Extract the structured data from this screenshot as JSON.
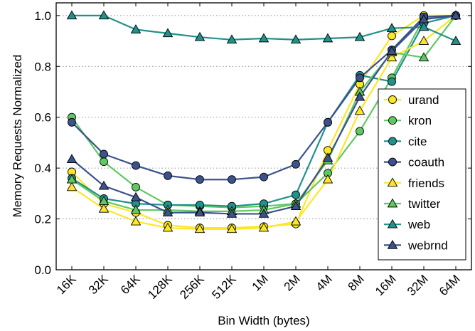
{
  "chart_data": {
    "type": "line",
    "title": "",
    "xlabel": "Bin Width (bytes)",
    "ylabel": "Memory Requests Normalized",
    "categories": [
      "16K",
      "32K",
      "64K",
      "128K",
      "256K",
      "512K",
      "1M",
      "2M",
      "4M",
      "8M",
      "16M",
      "32M",
      "64M"
    ],
    "ylim": [
      0.0,
      1.05
    ],
    "yticks": [
      "0.0",
      "0.2",
      "0.4",
      "0.6",
      "0.8",
      "1.0"
    ],
    "grid": "horizontal dotted",
    "legend_position": "right",
    "series": [
      {
        "name": "urand",
        "color": "#fde725",
        "marker": "circle",
        "values": [
          0.385,
          0.26,
          0.225,
          0.175,
          0.165,
          0.165,
          0.17,
          0.18,
          0.47,
          0.73,
          0.92,
          1.0,
          1.0
        ]
      },
      {
        "name": "kron",
        "color": "#5ec962",
        "marker": "circle",
        "values": [
          0.6,
          0.425,
          0.325,
          0.255,
          0.25,
          0.245,
          0.25,
          0.26,
          0.38,
          0.545,
          0.755,
          0.99,
          1.0
        ]
      },
      {
        "name": "cite",
        "color": "#21918c",
        "marker": "circle",
        "values": [
          0.36,
          0.28,
          0.26,
          0.255,
          0.255,
          0.25,
          0.26,
          0.295,
          0.58,
          0.765,
          0.74,
          0.97,
          1.0
        ]
      },
      {
        "name": "coauth",
        "color": "#3b528b",
        "marker": "circle",
        "values": [
          0.58,
          0.455,
          0.41,
          0.37,
          0.355,
          0.355,
          0.365,
          0.415,
          0.58,
          0.755,
          0.865,
          0.995,
          1.0
        ]
      },
      {
        "name": "friends",
        "color": "#fde725",
        "marker": "triangle",
        "values": [
          0.325,
          0.24,
          0.19,
          0.165,
          0.16,
          0.16,
          0.165,
          0.19,
          0.355,
          0.625,
          0.835,
          0.9,
          1.0
        ]
      },
      {
        "name": "twitter",
        "color": "#5ec962",
        "marker": "triangle",
        "values": [
          0.355,
          0.27,
          0.235,
          0.235,
          0.23,
          0.23,
          0.235,
          0.26,
          0.43,
          0.7,
          0.855,
          0.835,
          1.0
        ]
      },
      {
        "name": "web",
        "color": "#21918c",
        "marker": "triangle",
        "values": [
          1.0,
          1.0,
          0.945,
          0.93,
          0.915,
          0.905,
          0.91,
          0.905,
          0.91,
          0.915,
          0.95,
          0.955,
          0.9
        ]
      },
      {
        "name": "webrnd",
        "color": "#3b528b",
        "marker": "triangle",
        "values": [
          0.435,
          0.33,
          0.285,
          0.225,
          0.225,
          0.22,
          0.22,
          0.25,
          0.44,
          0.68,
          0.86,
          0.985,
          1.0
        ]
      }
    ]
  }
}
